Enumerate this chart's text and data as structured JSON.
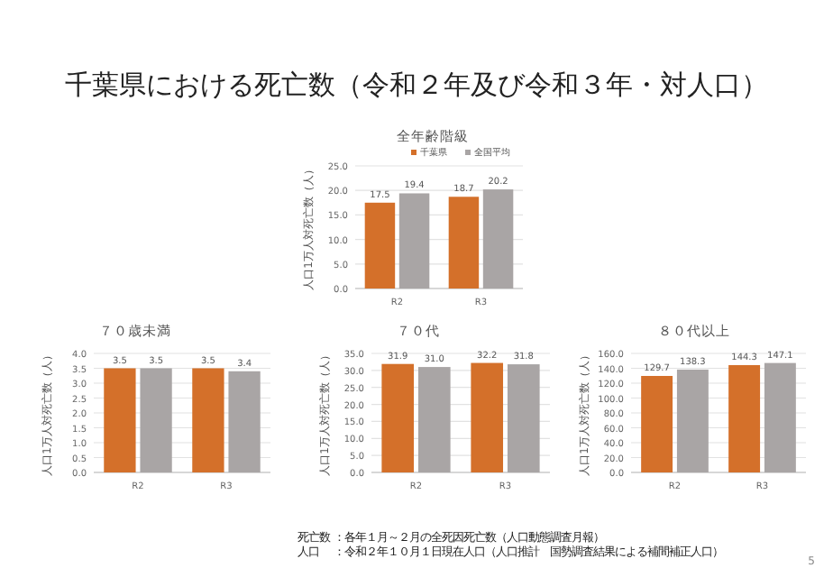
{
  "chart_data": [
    {
      "type": "bar",
      "title": "全年齢階級",
      "ylabel": "人口1万人対死亡数（人）",
      "categories": [
        "R2",
        "R3"
      ],
      "series": [
        {
          "name": "千葉県",
          "color": "#d4702a",
          "values": [
            17.5,
            18.7
          ],
          "value_labels": [
            "17.5",
            "18.7"
          ]
        },
        {
          "name": "全国平均",
          "color": "#a9a5a5",
          "values": [
            19.4,
            20.2
          ],
          "value_labels": [
            "19.4",
            "20.2"
          ]
        }
      ],
      "ylim": [
        0,
        25
      ],
      "yticks": [
        {
          "value": 0,
          "label": "0.0"
        },
        {
          "value": 5,
          "label": "5.0"
        },
        {
          "value": 10,
          "label": "10.0"
        },
        {
          "value": 15,
          "label": "15.0"
        },
        {
          "value": 20,
          "label": "20.0"
        },
        {
          "value": 25,
          "label": "25.0"
        }
      ],
      "grid": "y",
      "legend": "top right",
      "annotations": [
        "千葉県における死亡数（令和２年及び令和３年・対人口）"
      ]
    },
    {
      "type": "bar",
      "title": "７０歳未満",
      "ylabel": "人口1万人対死亡数（人）",
      "categories": [
        "R2",
        "R3"
      ],
      "series": [
        {
          "color": "#d4702a",
          "values": [
            3.5,
            3.5
          ],
          "value_labels": [
            "3.5",
            "3.5"
          ]
        },
        {
          "color": "#a9a5a5",
          "values": [
            3.5,
            3.4
          ],
          "value_labels": [
            "3.5",
            "3.4"
          ]
        }
      ],
      "ylim": [
        0,
        4
      ],
      "yticks": [
        {
          "value": 0,
          "label": "0.0"
        },
        {
          "value": 0.5,
          "label": "0.5"
        },
        {
          "value": 1,
          "label": "1.0"
        },
        {
          "value": 1.5,
          "label": "1.5"
        },
        {
          "value": 2,
          "label": "2.0"
        },
        {
          "value": 2.5,
          "label": "2.5"
        },
        {
          "value": 3,
          "label": "3.0"
        },
        {
          "value": 3.5,
          "label": "3.5"
        },
        {
          "value": 4,
          "label": "4.0"
        }
      ],
      "grid": "y"
    },
    {
      "type": "bar",
      "title": "７０代",
      "ylabel": "人口1万人対死亡数（人）",
      "categories": [
        "R2",
        "R3"
      ],
      "series": [
        {
          "color": "#d4702a",
          "values": [
            31.9,
            32.2
          ],
          "value_labels": [
            "31.9",
            "32.2"
          ]
        },
        {
          "color": "#a9a5a5",
          "values": [
            31.0,
            31.8
          ],
          "value_labels": [
            "31.0",
            "31.8"
          ]
        }
      ],
      "ylim": [
        0,
        35
      ],
      "yticks": [
        {
          "value": 0,
          "label": "0.0"
        },
        {
          "value": 5,
          "label": "5.0"
        },
        {
          "value": 10,
          "label": "10.0"
        },
        {
          "value": 15,
          "label": "15.0"
        },
        {
          "value": 20,
          "label": "20.0"
        },
        {
          "value": 25,
          "label": "25.0"
        },
        {
          "value": 30,
          "label": "30.0"
        },
        {
          "value": 35,
          "label": "35.0"
        }
      ],
      "grid": "y"
    },
    {
      "type": "bar",
      "title": "８０代以上",
      "ylabel": "人口1万人対死亡数（人）",
      "categories": [
        "R2",
        "R3"
      ],
      "series": [
        {
          "color": "#d4702a",
          "values": [
            129.7,
            144.3
          ],
          "value_labels": [
            "129.7",
            "144.3"
          ]
        },
        {
          "color": "#a9a5a5",
          "values": [
            138.3,
            147.1
          ],
          "value_labels": [
            "138.3",
            "147.1"
          ]
        }
      ],
      "ylim": [
        0,
        160
      ],
      "yticks": [
        {
          "value": 0,
          "label": "0.0"
        },
        {
          "value": 20,
          "label": "20.0"
        },
        {
          "value": 40,
          "label": "40.0"
        },
        {
          "value": 60,
          "label": "60.0"
        },
        {
          "value": 80,
          "label": "80.0"
        },
        {
          "value": 100,
          "label": "100.0"
        },
        {
          "value": 120,
          "label": "120.0"
        },
        {
          "value": 140,
          "label": "140.0"
        },
        {
          "value": 160,
          "label": "160.0"
        }
      ],
      "grid": "y",
      "annotations": [
        "死亡数 ：各年１月～２月の全死因死亡数（人口動態調査月報）",
        "人口　 ：令和２年１０月１日現在人口（人口推計　国勢調査結果による補間補正人口）",
        "5"
      ]
    }
  ]
}
